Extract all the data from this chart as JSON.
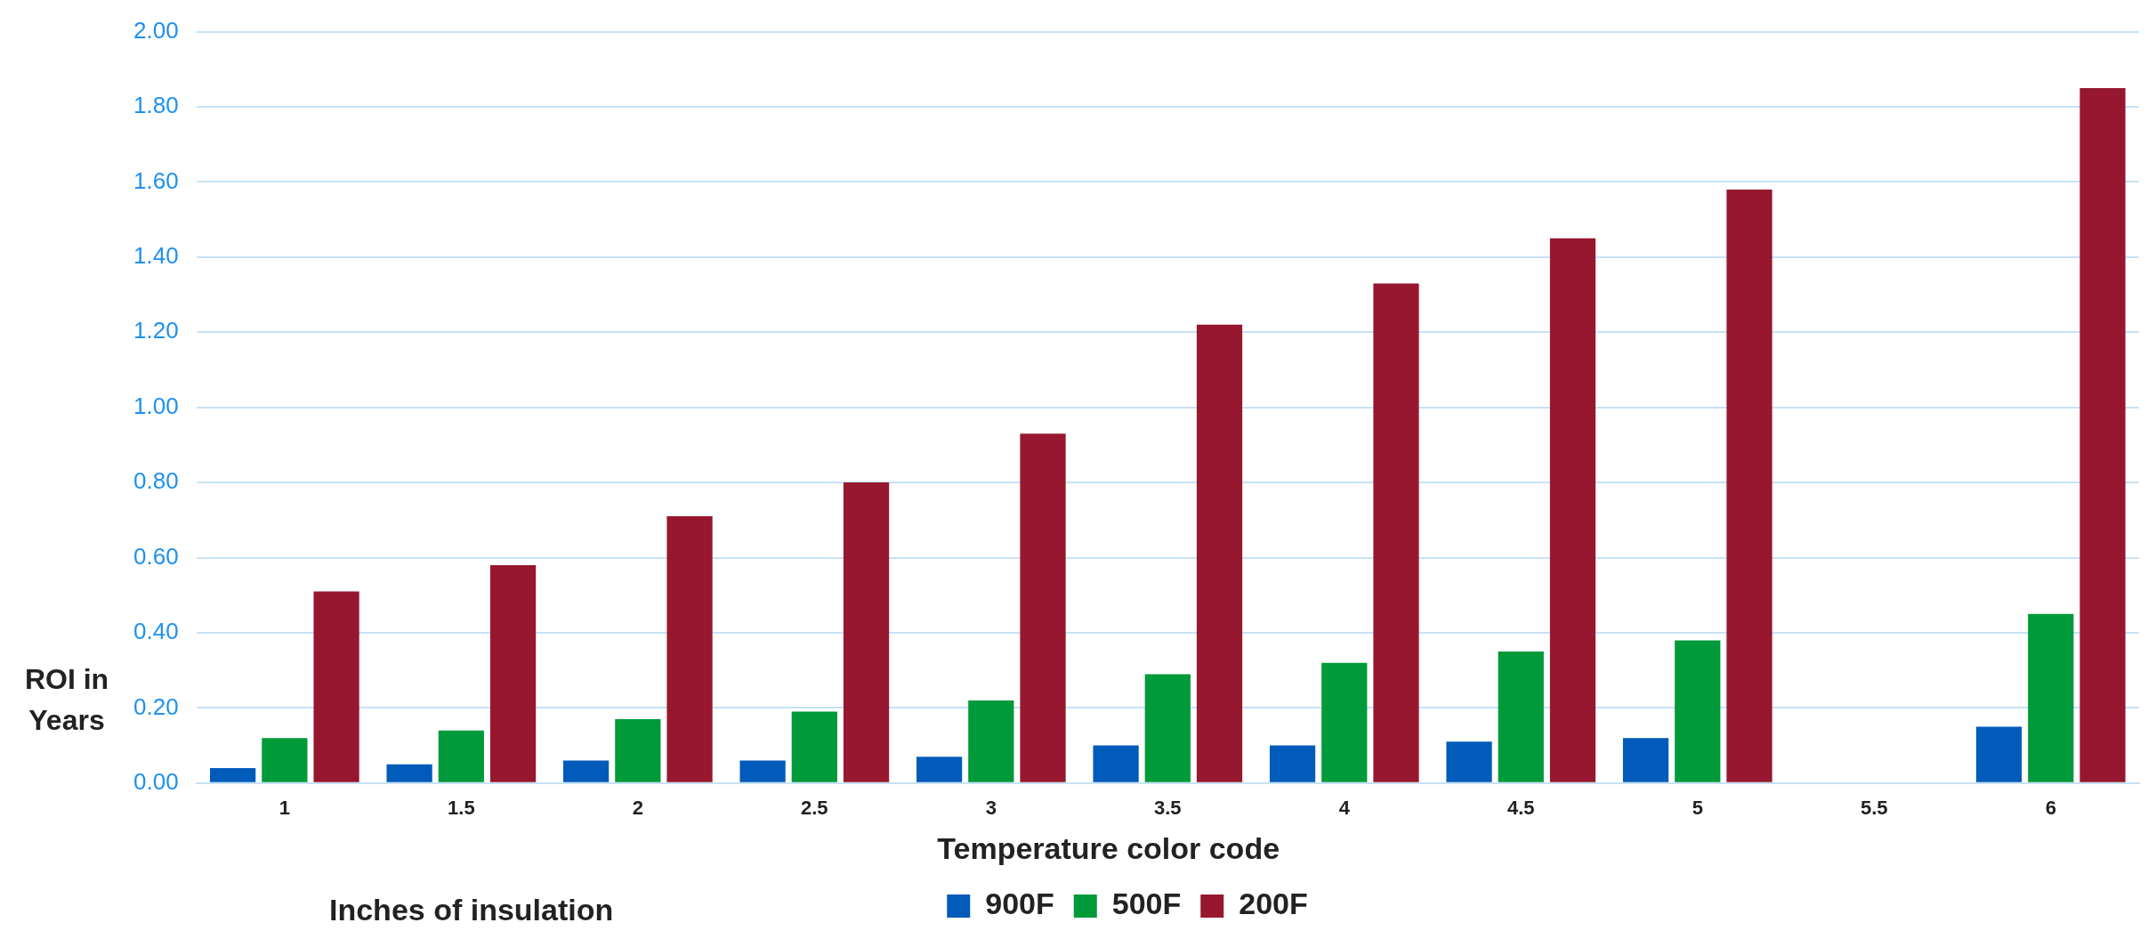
{
  "chart_data": {
    "type": "bar",
    "xlabel": "Inches of insulation",
    "ylabel": "ROI in Years",
    "legend_title": "Temperature color code",
    "categories": [
      "1",
      "1.5",
      "2",
      "2.5",
      "3",
      "3.5",
      "4",
      "4.5",
      "5",
      "5.5",
      "6"
    ],
    "series": [
      {
        "name": "900F",
        "color": "#005bbb",
        "values": [
          0.04,
          0.05,
          0.06,
          0.06,
          0.07,
          0.1,
          0.1,
          0.11,
          0.12,
          null,
          0.15
        ]
      },
      {
        "name": "500F",
        "color": "#009a3a",
        "values": [
          0.12,
          0.14,
          0.17,
          0.19,
          0.22,
          0.29,
          0.32,
          0.35,
          0.38,
          null,
          0.45
        ]
      },
      {
        "name": "200F",
        "color": "#96172e",
        "values": [
          0.51,
          0.58,
          0.71,
          0.8,
          0.93,
          1.22,
          1.33,
          1.45,
          1.58,
          null,
          1.85
        ]
      }
    ],
    "ylim": [
      0,
      2
    ],
    "yticks": [
      {
        "value": 0,
        "label": "0.00"
      },
      {
        "value": 0.2,
        "label": "0.20"
      },
      {
        "value": 0.4,
        "label": "0.40"
      },
      {
        "value": 0.6,
        "label": "0.60"
      },
      {
        "value": 0.8,
        "label": "0.80"
      },
      {
        "value": 1,
        "label": "1.00"
      },
      {
        "value": 1.2,
        "label": "1.20"
      },
      {
        "value": 1.4,
        "label": "1.40"
      },
      {
        "value": 1.6,
        "label": "1.60"
      },
      {
        "value": 1.8,
        "label": "1.80"
      },
      {
        "value": 2,
        "label": "2.00"
      }
    ],
    "grid": "y",
    "legend": "bottom"
  }
}
